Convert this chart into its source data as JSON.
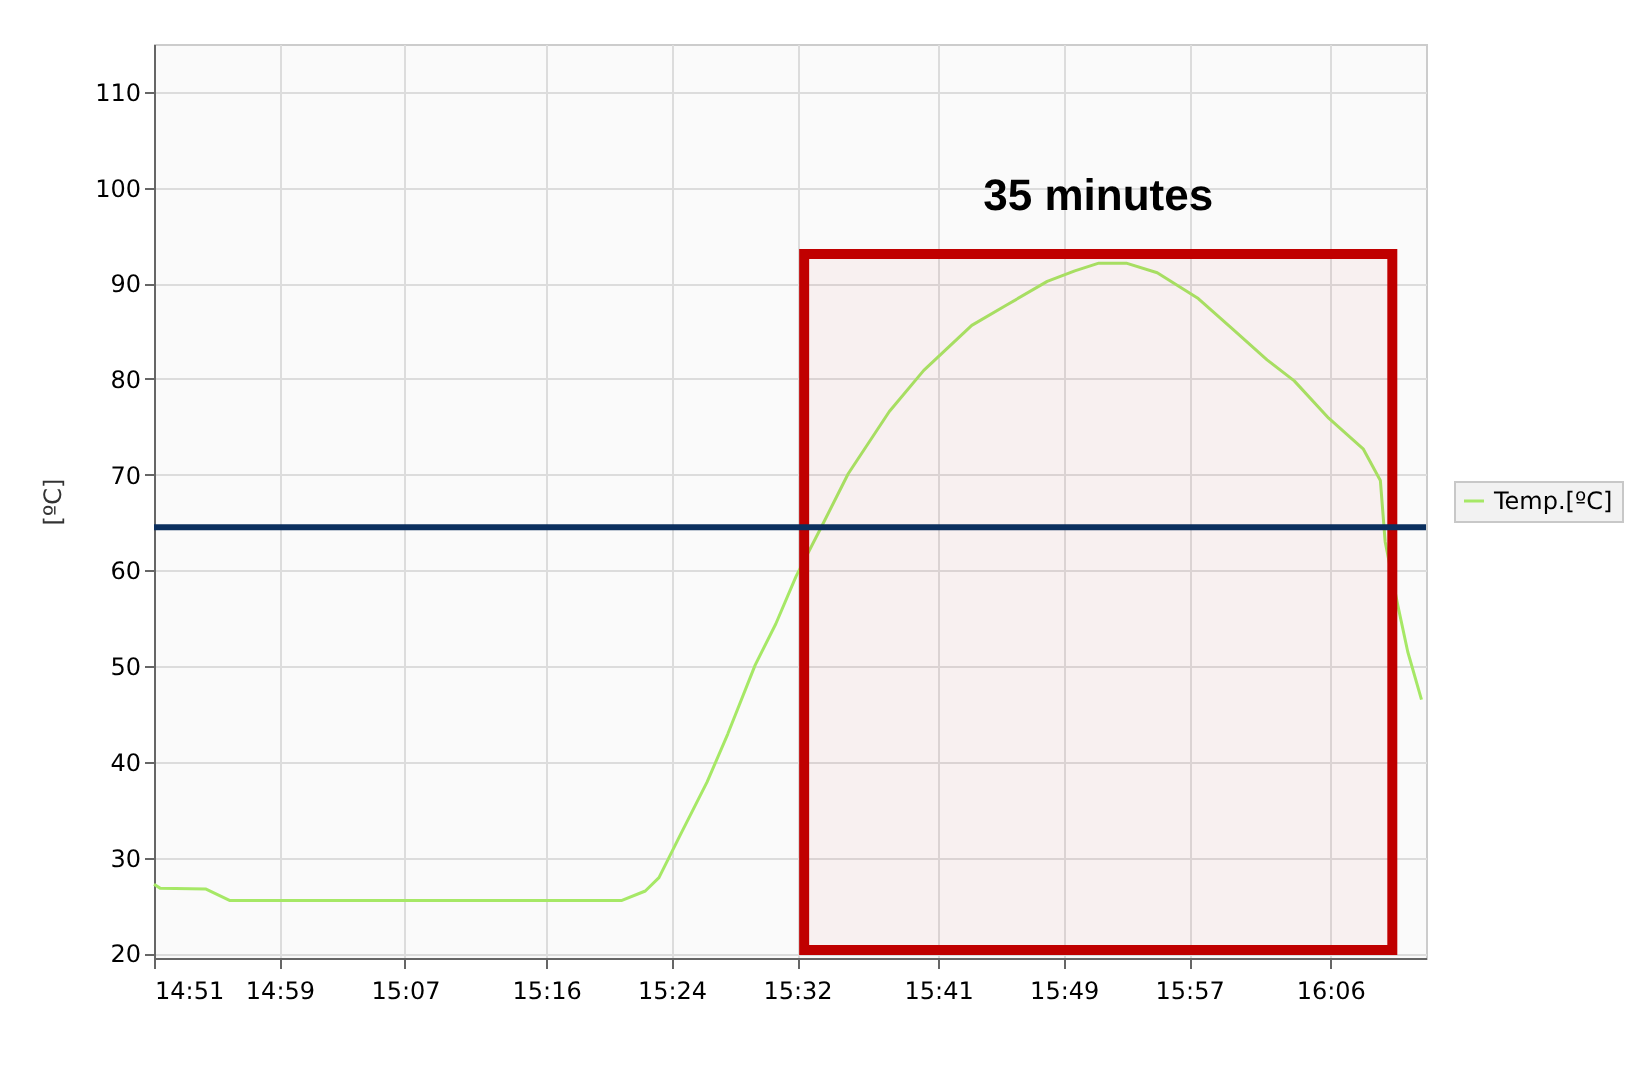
{
  "chart_data": {
    "type": "line",
    "ylabel": "[ºC]",
    "xlim": [
      14.85,
      16.2017
    ],
    "ylim": [
      19.5,
      115
    ],
    "xticks": [
      {
        "value": 14.85,
        "label": "14:51"
      },
      {
        "value": 14.9833,
        "label": "14:59"
      },
      {
        "value": 15.1167,
        "label": "15:07"
      },
      {
        "value": 15.2667,
        "label": "15:16"
      },
      {
        "value": 15.4,
        "label": "15:24"
      },
      {
        "value": 15.5333,
        "label": "15:32"
      },
      {
        "value": 15.6833,
        "label": "15:41"
      },
      {
        "value": 15.8167,
        "label": "15:49"
      },
      {
        "value": 15.95,
        "label": "15:57"
      },
      {
        "value": 16.1,
        "label": "16:06"
      }
    ],
    "yticks": [
      20,
      30,
      40,
      50,
      60,
      70,
      80,
      90,
      100,
      110
    ],
    "grid": true,
    "legend": "right",
    "series": [
      {
        "name": "Temp.[ºC]",
        "color": "#a6e866",
        "x": [
          14.85,
          14.8564,
          14.9053,
          14.9308,
          15.3466,
          15.3721,
          15.3866,
          15.4085,
          15.4378,
          15.4597,
          15.4888,
          15.5107,
          15.5324,
          15.5585,
          15.5877,
          15.6314,
          15.668,
          15.719,
          15.7556,
          15.7992,
          15.8285,
          15.854,
          15.8832,
          15.9161,
          15.9597,
          15.9963,
          16.0328,
          16.0617,
          16.0983,
          16.1349,
          16.1532,
          16.1583,
          16.1714,
          16.1823,
          16.1969
        ],
        "values": [
          27.2,
          26.8,
          26.7,
          25.5,
          25.5,
          26.5,
          27.9,
          32.2,
          37.9,
          42.9,
          50.1,
          54.4,
          59.4,
          64.4,
          70.1,
          76.6,
          80.9,
          85.6,
          87.7,
          90.2,
          91.3,
          92.1,
          92.1,
          91.1,
          88.4,
          85.2,
          82.0,
          79.8,
          75.9,
          72.7,
          69.4,
          63.0,
          56.5,
          51.5,
          46.5
        ]
      }
    ],
    "ref_lines": [
      {
        "axis": "y",
        "value": 64.5,
        "color": "#0b2f5e"
      }
    ],
    "bands": [
      {
        "axis": "x",
        "from": 15.5409,
        "to": 16.1659,
        "label": "35 minutes",
        "color": "#c00000"
      }
    ]
  }
}
